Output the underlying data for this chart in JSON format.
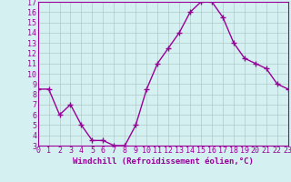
{
  "x": [
    0,
    1,
    2,
    3,
    4,
    5,
    6,
    7,
    8,
    9,
    10,
    11,
    12,
    13,
    14,
    15,
    16,
    17,
    18,
    19,
    20,
    21,
    22,
    23
  ],
  "y": [
    8.5,
    8.5,
    6.0,
    7.0,
    5.0,
    3.5,
    3.5,
    3.0,
    3.0,
    5.0,
    8.5,
    11.0,
    12.5,
    14.0,
    16.0,
    17.0,
    17.0,
    15.5,
    13.0,
    11.5,
    11.0,
    10.5,
    9.0,
    8.5
  ],
  "line_color": "#990099",
  "marker": "+",
  "markersize": 4,
  "linewidth": 1.0,
  "background_color": "#d5f0f0",
  "grid_color": "#b0c8c8",
  "xlabel": "Windchill (Refroidissement éolien,°C)",
  "xlabel_fontsize": 6.5,
  "tick_fontsize": 6.0,
  "ylim": [
    3,
    17
  ],
  "xlim": [
    0,
    23
  ],
  "yticks": [
    3,
    4,
    5,
    6,
    7,
    8,
    9,
    10,
    11,
    12,
    13,
    14,
    15,
    16,
    17
  ],
  "xticks": [
    0,
    1,
    2,
    3,
    4,
    5,
    6,
    7,
    8,
    9,
    10,
    11,
    12,
    13,
    14,
    15,
    16,
    17,
    18,
    19,
    20,
    21,
    22,
    23
  ]
}
